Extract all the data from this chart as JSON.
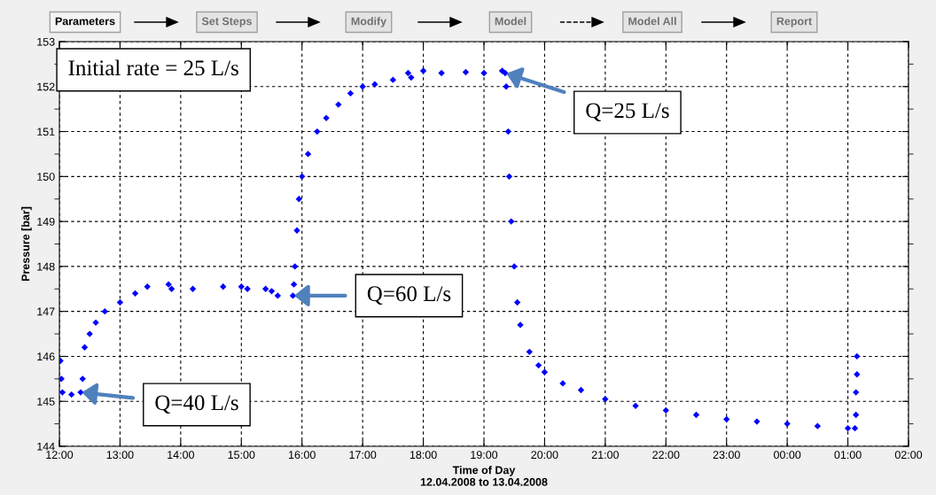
{
  "chart_data": {
    "type": "scatter",
    "xlabel": "Time of Day\n12.04.2008 to 13.04.2008",
    "ylabel": "Pressure [bar]",
    "x": [
      "2008-04-12T12:01",
      "2008-04-12T12:02",
      "2008-04-12T12:03",
      "2008-04-12T12:12",
      "2008-04-12T12:21",
      "2008-04-12T12:23",
      "2008-04-12T12:25",
      "2008-04-12T12:30",
      "2008-04-12T12:36",
      "2008-04-12T12:45",
      "2008-04-12T13:00",
      "2008-04-12T13:15",
      "2008-04-12T13:27",
      "2008-04-12T13:48",
      "2008-04-12T13:51",
      "2008-04-12T14:12",
      "2008-04-12T14:42",
      "2008-04-12T15:00",
      "2008-04-12T15:06",
      "2008-04-12T15:24",
      "2008-04-12T15:30",
      "2008-04-12T15:36",
      "2008-04-12T15:51",
      "2008-04-12T15:52",
      "2008-04-12T15:53",
      "2008-04-12T15:55",
      "2008-04-12T15:57",
      "2008-04-12T16:00",
      "2008-04-12T16:06",
      "2008-04-12T16:15",
      "2008-04-12T16:24",
      "2008-04-12T16:36",
      "2008-04-12T16:48",
      "2008-04-12T17:00",
      "2008-04-12T17:12",
      "2008-04-12T17:30",
      "2008-04-12T17:45",
      "2008-04-12T17:48",
      "2008-04-12T18:00",
      "2008-04-12T18:18",
      "2008-04-12T18:42",
      "2008-04-12T19:00",
      "2008-04-12T19:18",
      "2008-04-12T19:21",
      "2008-04-12T19:22",
      "2008-04-12T19:24",
      "2008-04-12T19:25",
      "2008-04-12T19:27",
      "2008-04-12T19:30",
      "2008-04-12T19:33",
      "2008-04-12T19:36",
      "2008-04-12T19:45",
      "2008-04-12T19:54",
      "2008-04-12T20:00",
      "2008-04-12T20:18",
      "2008-04-12T20:36",
      "2008-04-12T21:00",
      "2008-04-12T21:30",
      "2008-04-12T22:00",
      "2008-04-12T22:30",
      "2008-04-12T23:00",
      "2008-04-12T23:30",
      "2008-04-13T00:00",
      "2008-04-13T00:30",
      "2008-04-13T01:00",
      "2008-04-13T01:07",
      "2008-04-13T01:08",
      "2008-04-13T01:08",
      "2008-04-13T01:09",
      "2008-04-13T01:09"
    ],
    "series": [
      {
        "color": "#0000ff",
        "values": [
          145.9,
          145.5,
          145.2,
          145.15,
          145.2,
          145.5,
          146.2,
          146.5,
          146.75,
          147.0,
          147.2,
          147.4,
          147.55,
          147.6,
          147.5,
          147.5,
          147.55,
          147.55,
          147.5,
          147.5,
          147.45,
          147.35,
          147.35,
          147.6,
          148.0,
          148.8,
          149.5,
          150.0,
          150.5,
          151.0,
          151.3,
          151.6,
          151.85,
          152.0,
          152.05,
          152.15,
          152.3,
          152.2,
          152.35,
          152.3,
          152.32,
          152.3,
          152.35,
          152.3,
          152.0,
          151.0,
          150.0,
          149.0,
          148.0,
          147.2,
          146.7,
          146.1,
          145.8,
          145.65,
          145.4,
          145.25,
          145.05,
          144.9,
          144.8,
          144.7,
          144.6,
          144.55,
          144.5,
          144.45,
          144.4,
          144.4,
          144.7,
          145.2,
          145.6,
          146.0
        ]
      }
    ],
    "marker": "diamond",
    "grid": true,
    "xlim": [
      "2008-04-12T12:00",
      "2008-04-13T02:00"
    ],
    "xticks": [
      {
        "value": "2008-04-12T12:00",
        "label": "12:00"
      },
      {
        "value": "2008-04-12T13:00",
        "label": "13:00"
      },
      {
        "value": "2008-04-12T14:00",
        "label": "14:00"
      },
      {
        "value": "2008-04-12T15:00",
        "label": "15:00"
      },
      {
        "value": "2008-04-12T16:00",
        "label": "16:00"
      },
      {
        "value": "2008-04-12T17:00",
        "label": "17:00"
      },
      {
        "value": "2008-04-12T18:00",
        "label": "18:00"
      },
      {
        "value": "2008-04-12T19:00",
        "label": "19:00"
      },
      {
        "value": "2008-04-12T20:00",
        "label": "20:00"
      },
      {
        "value": "2008-04-12T21:00",
        "label": "21:00"
      },
      {
        "value": "2008-04-12T22:00",
        "label": "22:00"
      },
      {
        "value": "2008-04-12T23:00",
        "label": "23:00"
      },
      {
        "value": "2008-04-13T00:00",
        "label": "00:00"
      },
      {
        "value": "2008-04-13T01:00",
        "label": "01:00"
      },
      {
        "value": "2008-04-13T02:00",
        "label": "02:00"
      }
    ],
    "ylim": [
      144,
      153
    ],
    "yticks": [
      144,
      145,
      146,
      147,
      148,
      149,
      150,
      151,
      152,
      153
    ],
    "annotations": [
      "Initial rate = 25 L/s",
      {
        "text": "Q=40 L/s",
        "x": "2008-04-12T12:21",
        "y": 145.2
      },
      {
        "text": "Q=60 L/s",
        "x": "2008-04-12T15:51",
        "y": 147.35
      },
      {
        "text": "Q=25 L/s",
        "x": "2008-04-12T19:21",
        "y": 152.3
      },
      "Parameters",
      "Set Steps",
      "Modify",
      "Model",
      "Model All",
      "Report"
    ]
  }
}
